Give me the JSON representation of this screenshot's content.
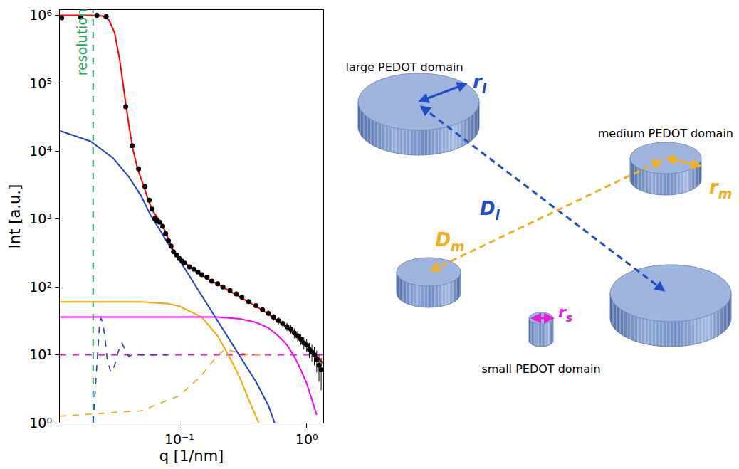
{
  "chart_data": {
    "type": "scatter",
    "x_label": "q [1/nm]",
    "y_label": "Int [a.u.]",
    "log": true,
    "grid": false,
    "xlim": [
      0.0115,
      1.35
    ],
    "ylim": [
      1,
      1200000
    ],
    "xticks": [
      {
        "value": 0.1,
        "label": "10⁻¹"
      },
      {
        "value": 1,
        "label": "10⁰"
      }
    ],
    "yticks": [
      {
        "value": 1,
        "label": "10⁰"
      },
      {
        "value": 10,
        "label": "10¹"
      },
      {
        "value": 100,
        "label": "10²"
      },
      {
        "value": 1000,
        "label": "10³"
      },
      {
        "value": 10000,
        "label": "10⁴"
      },
      {
        "value": 100000,
        "label": "10⁵"
      },
      {
        "value": 1000000,
        "label": "10⁶"
      }
    ],
    "series": [
      {
        "type": "line",
        "line_style": "dash",
        "color": "#ff00ff",
        "x": [
          0.0115,
          1.35
        ],
        "values": [
          10,
          10
        ]
      },
      {
        "type": "line",
        "line_style": "dash",
        "color": "#1f3fd6",
        "x": [
          0.021,
          0.022,
          0.023,
          0.0236,
          0.0242,
          0.025,
          0.026,
          0.027,
          0.0289,
          0.031,
          0.033,
          0.0353,
          0.0375,
          0.04,
          0.044,
          0.05,
          0.08
        ],
        "values": [
          1.0,
          4,
          15,
          28,
          35,
          30,
          18,
          9,
          5.5,
          7,
          11,
          15,
          12,
          9.5,
          10.3,
          10,
          10
        ]
      },
      {
        "type": "line",
        "line_style": "dash",
        "color": "#ffa500",
        "x": [
          0.0115,
          0.05,
          0.1,
          0.15,
          0.2,
          0.23,
          0.28,
          0.35,
          0.5
        ],
        "values": [
          1.25,
          1.5,
          2.5,
          5,
          10,
          12,
          11,
          10,
          10
        ]
      },
      {
        "type": "line",
        "line_style": "solid",
        "color": "#ffa500",
        "x": [
          0.0115,
          0.05,
          0.08,
          0.1,
          0.15,
          0.2,
          0.25,
          0.3,
          0.35,
          0.42
        ],
        "values": [
          60,
          60,
          57,
          52,
          36,
          19,
          9,
          4.5,
          2.2,
          1.0
        ]
      },
      {
        "type": "line",
        "line_style": "solid",
        "color": "#ff00ff",
        "x": [
          0.0115,
          0.2,
          0.3,
          0.4,
          0.5,
          0.6,
          0.7,
          0.8,
          0.9,
          1.0,
          1.1,
          1.2
        ],
        "values": [
          36,
          36,
          34,
          30,
          25,
          19,
          14,
          9.5,
          6,
          3.8,
          2.2,
          1.3
        ]
      },
      {
        "type": "line",
        "line_style": "solid",
        "color": "#1f3fd6",
        "x": [
          0.0115,
          0.02,
          0.03,
          0.04,
          0.05,
          0.06,
          0.07,
          0.08,
          0.1,
          0.15,
          0.2,
          0.3,
          0.4,
          0.5,
          0.56
        ],
        "values": [
          20000,
          14000,
          8000,
          4200,
          2200,
          1100,
          700,
          460,
          250,
          75,
          32,
          9.5,
          4,
          1.8,
          1.0
        ]
      },
      {
        "type": "line",
        "line_style": "solid",
        "color": "#ff0000",
        "x": [
          0.0115,
          0.02,
          0.025,
          0.028,
          0.031,
          0.034,
          0.037,
          0.04,
          0.043,
          0.047,
          0.052,
          0.057,
          0.062,
          0.067,
          0.072,
          0.078,
          0.085,
          0.09,
          0.1,
          0.12,
          0.15,
          0.2,
          0.3,
          0.4,
          0.5,
          0.7,
          1.0,
          1.35
        ],
        "values": [
          1000000,
          1000000,
          980000,
          850000,
          550000,
          220000,
          70000,
          25000,
          11000,
          5500,
          3200,
          1900,
          1300,
          1050,
          880,
          640,
          420,
          330,
          270,
          200,
          150,
          110,
          72,
          52,
          40,
          25,
          14,
          7.5
        ]
      },
      {
        "type": "scatter",
        "marker": "circle",
        "color": "#000000",
        "x": [
          0.0119,
          0.0168,
          0.0225,
          0.0266,
          0.0379,
          0.0426,
          0.0478,
          0.0537,
          0.058,
          0.061,
          0.064,
          0.067,
          0.07,
          0.074,
          0.078,
          0.082,
          0.086,
          0.09,
          0.095,
          0.1,
          0.105,
          0.11,
          0.12,
          0.13,
          0.14,
          0.15,
          0.165,
          0.18,
          0.2,
          0.22,
          0.25,
          0.28,
          0.31,
          0.35,
          0.4,
          0.45,
          0.5,
          0.55,
          0.6,
          0.65,
          0.7,
          0.75,
          0.8,
          0.85,
          0.9,
          0.95,
          1.0,
          1.05,
          1.1,
          1.15,
          1.2,
          1.25,
          1.3
        ],
        "values": [
          920000,
          940000,
          1000000,
          960000,
          45000,
          12000,
          5500,
          3000,
          1900,
          1400,
          1020,
          950,
          900,
          780,
          610,
          480,
          400,
          330,
          295,
          262,
          240,
          224,
          198,
          182,
          166,
          151,
          139,
          122,
          111,
          100,
          89,
          79,
          71,
          61,
          53,
          46,
          41,
          36,
          32,
          29,
          26,
          24,
          21,
          19,
          17,
          15,
          14,
          12,
          11,
          10,
          8.5,
          7,
          6
        ],
        "errors": [
          0,
          0,
          0,
          0,
          0,
          0,
          0,
          0,
          30,
          25,
          20,
          18,
          16,
          14,
          12,
          10,
          8,
          7,
          6,
          6,
          5,
          5,
          5,
          5,
          5,
          5,
          5,
          5,
          5,
          5,
          5,
          5,
          4,
          4,
          4,
          4,
          4,
          4,
          4,
          4,
          3.5,
          3.5,
          3.5,
          3.5,
          3,
          3,
          3,
          3,
          3,
          3,
          3,
          3,
          3
        ]
      }
    ],
    "vlines": [
      {
        "x": 0.021,
        "color": "#22a85a",
        "line_style": "dash"
      }
    ],
    "annotations": [
      {
        "text": "resolution",
        "x": 0.021,
        "y": 400000,
        "color": "#22a85a"
      }
    ]
  },
  "diagram": {
    "domains": [
      {
        "label": "large PEDOT domain",
        "radius": {
          "text": "r",
          "sub": "l"
        },
        "color": "#1f4fc8"
      },
      {
        "label": "medium PEDOT domain",
        "radius": {
          "text": "r",
          "sub": "m"
        },
        "color": "#f0b020"
      },
      {
        "label": "small PEDOT domain",
        "radius": {
          "text": "r",
          "sub": "s"
        },
        "color": "#e020d8"
      }
    ],
    "distances": [
      {
        "text": "D",
        "sub": "l",
        "color": "#1f4fc8"
      },
      {
        "text": "D",
        "sub": "m",
        "color": "#f0b020"
      }
    ]
  }
}
